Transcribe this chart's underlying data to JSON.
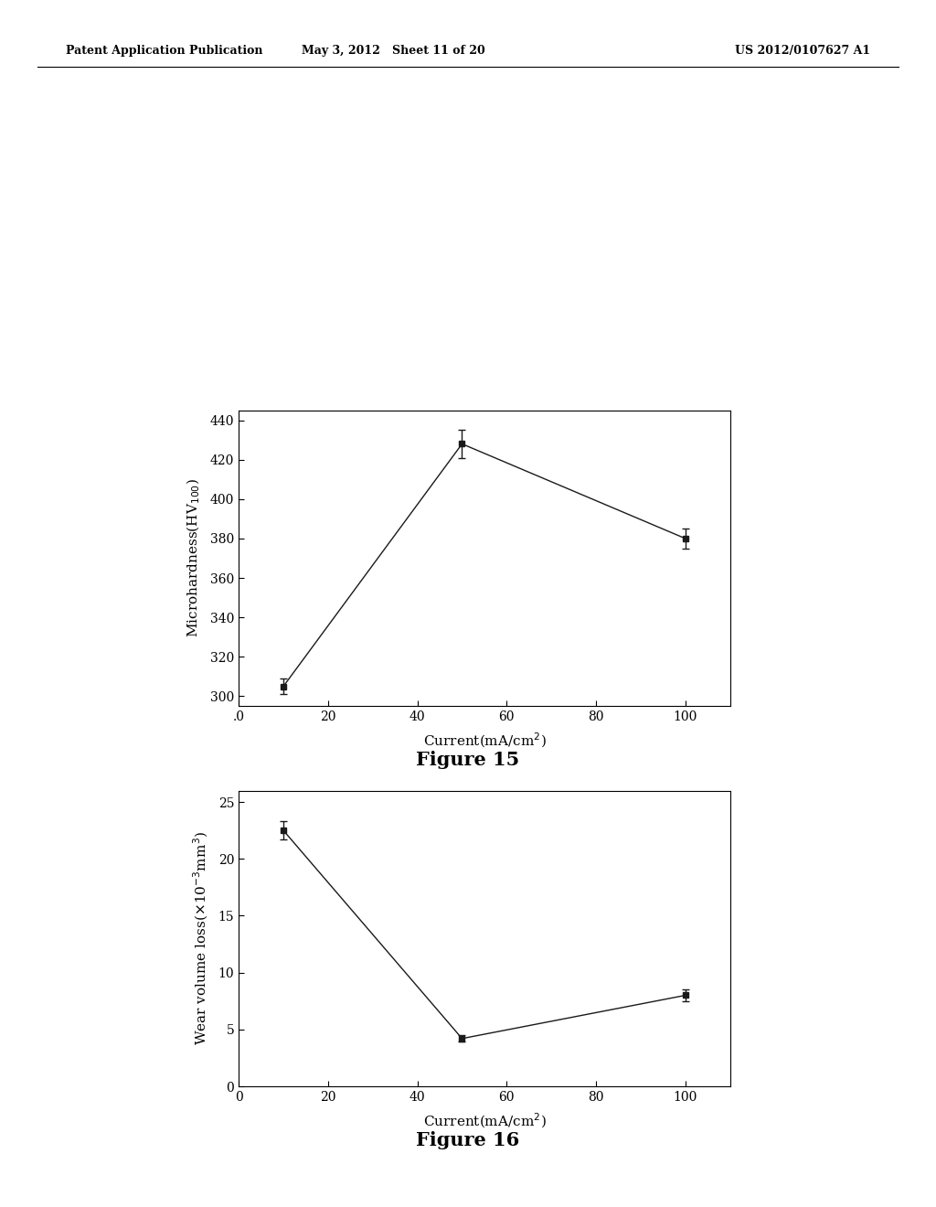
{
  "fig15": {
    "x": [
      10,
      50,
      100
    ],
    "y": [
      305,
      428,
      380
    ],
    "yerr": [
      4,
      7,
      5
    ],
    "xlim": [
      0,
      110
    ],
    "ylim": [
      295,
      445
    ],
    "xticks": [
      0,
      20,
      40,
      60,
      80,
      100
    ],
    "xtick_labels": [
      ".0",
      "20",
      "40",
      "60",
      "80",
      "100"
    ],
    "yticks": [
      300,
      320,
      340,
      360,
      380,
      400,
      420,
      440
    ],
    "title": "Figure 15"
  },
  "fig16": {
    "x": [
      10,
      50,
      100
    ],
    "y": [
      22.5,
      4.2,
      8.0
    ],
    "yerr": [
      0.8,
      0.3,
      0.5
    ],
    "xlim": [
      0,
      110
    ],
    "ylim": [
      0,
      26
    ],
    "xticks": [
      0,
      20,
      40,
      60,
      80,
      100
    ],
    "xtick_labels": [
      "0",
      "20",
      "40",
      "60",
      "80",
      "100"
    ],
    "yticks": [
      0,
      5,
      10,
      15,
      20,
      25
    ],
    "title": "Figure 16"
  },
  "header_left": "Patent Application Publication",
  "header_mid": "May 3, 2012   Sheet 11 of 20",
  "header_right": "US 2012/0107627 A1",
  "bg_color": "#ffffff",
  "line_color": "#1a1a1a",
  "marker_color": "#1a1a1a",
  "marker": "s",
  "marker_size": 5
}
